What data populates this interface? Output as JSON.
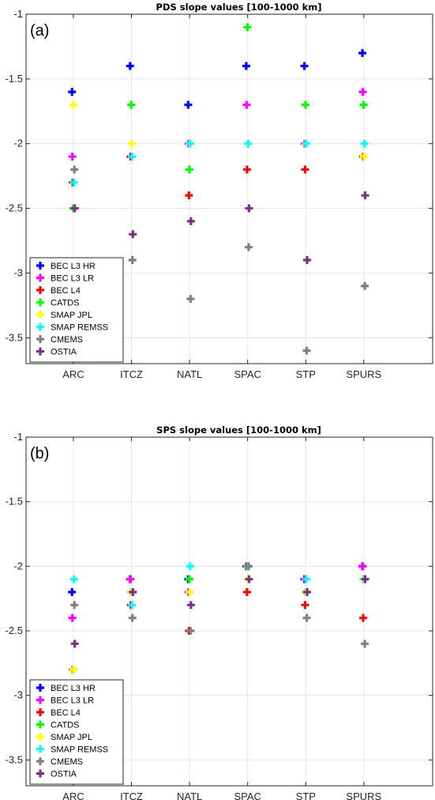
{
  "chart_data": [
    {
      "type": "scatter",
      "title": "PDS slope values [100-1000 km]",
      "panel_label": "(a)",
      "categories": [
        "ARC",
        "ITCZ",
        "NATL",
        "SPAC",
        "STP",
        "SPURS"
      ],
      "ylim": [
        -3.7,
        -1
      ],
      "yticks": [
        "-1",
        "-1.5",
        "-2",
        "-2.5",
        "-3",
        "-3.5"
      ],
      "ytick_values": [
        -1,
        -1.5,
        -2,
        -2.5,
        -3,
        -3.5
      ],
      "grid": true,
      "legend_position": "bottom-left",
      "marker": "plus",
      "series": [
        {
          "name": "BEC L3 HR",
          "color": "#0000ff",
          "values": [
            -1.6,
            -1.4,
            -1.7,
            -1.4,
            -1.4,
            -1.3
          ]
        },
        {
          "name": "BEC L3 LR",
          "color": "#ff00ff",
          "values": [
            -2.1,
            -2.1,
            -2.0,
            -1.7,
            -2.0,
            -1.6
          ]
        },
        {
          "name": "BEC L4",
          "color": "#ff0000",
          "values": [
            -2.3,
            -2.1,
            -2.4,
            -2.2,
            -2.2,
            -2.1
          ]
        },
        {
          "name": "CATDS",
          "color": "#00ff00",
          "values": [
            -2.5,
            -1.7,
            -2.2,
            -1.1,
            -1.7,
            -1.7
          ]
        },
        {
          "name": "SMAP JPL",
          "color": "#ffff00",
          "values": [
            -1.7,
            -2.0,
            -2.0,
            -2.0,
            -2.0,
            -2.1
          ]
        },
        {
          "name": "SMAP REMSS",
          "color": "#00ffff",
          "values": [
            -2.3,
            -2.1,
            -2.0,
            -2.0,
            -2.0,
            -2.0
          ]
        },
        {
          "name": "CMEMS",
          "color": "#808080",
          "values": [
            -2.2,
            -2.9,
            -3.2,
            -2.8,
            -3.6,
            -3.1
          ]
        },
        {
          "name": "OSTIA",
          "color": "#7e2f8e",
          "values": [
            -2.5,
            -2.7,
            -2.6,
            -2.5,
            -2.9,
            -2.4
          ]
        }
      ]
    },
    {
      "type": "scatter",
      "title": "SPS slope values [100-1000 km]",
      "panel_label": "(b)",
      "categories": [
        "ARC",
        "ITCZ",
        "NATL",
        "SPAC",
        "STP",
        "SPURS"
      ],
      "ylim": [
        -3.7,
        -1
      ],
      "yticks": [
        "-1",
        "-1.5",
        "-2",
        "-2.5",
        "-3",
        "-3.5"
      ],
      "ytick_values": [
        -1,
        -1.5,
        -2,
        -2.5,
        -3,
        -3.5
      ],
      "grid": true,
      "legend_position": "bottom-left",
      "marker": "plus",
      "series": [
        {
          "name": "BEC L3 HR",
          "color": "#0000ff",
          "values": [
            -2.2,
            -2.1,
            -2.1,
            -2.0,
            -2.1,
            -2.0
          ]
        },
        {
          "name": "BEC L3 LR",
          "color": "#ff00ff",
          "values": [
            -2.4,
            -2.1,
            -2.2,
            -2.0,
            -2.1,
            -2.0
          ]
        },
        {
          "name": "BEC L4",
          "color": "#ff0000",
          "values": [
            -2.8,
            -2.3,
            -2.5,
            -2.2,
            -2.3,
            -2.4
          ]
        },
        {
          "name": "CATDS",
          "color": "#00ff00",
          "values": [
            -2.8,
            -2.2,
            -2.1,
            -2.0,
            -2.2,
            -2.1
          ]
        },
        {
          "name": "SMAP JPL",
          "color": "#ffff00",
          "values": [
            -2.8,
            -2.2,
            -2.2,
            -2.1,
            -2.2,
            -2.1
          ]
        },
        {
          "name": "SMAP REMSS",
          "color": "#00ffff",
          "values": [
            -2.1,
            -2.3,
            -2.0,
            -2.0,
            -2.1,
            -2.1
          ]
        },
        {
          "name": "CMEMS",
          "color": "#808080",
          "values": [
            -2.3,
            -2.4,
            -2.5,
            -2.0,
            -2.4,
            -2.6
          ]
        },
        {
          "name": "OSTIA",
          "color": "#7e2f8e",
          "values": [
            -2.6,
            -2.2,
            -2.3,
            -2.1,
            -2.2,
            -2.1
          ]
        }
      ]
    }
  ]
}
